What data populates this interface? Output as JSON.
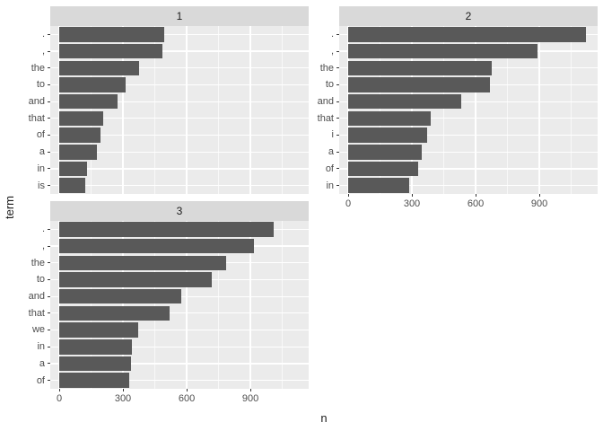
{
  "chart_data": {
    "type": "bar",
    "orientation": "horizontal",
    "title": "",
    "xlabel": "n",
    "ylabel": "term",
    "legend": "none",
    "grid": true,
    "panel_x_range": [
      -42,
      1174
    ],
    "x_ticks": [
      {
        "label": "0",
        "value": 0
      },
      {
        "label": "300",
        "value": 300
      },
      {
        "label": "600",
        "value": 600
      },
      {
        "label": "900",
        "value": 900
      }
    ],
    "x_minor_values": [
      150,
      450,
      750,
      1050
    ],
    "facets": [
      {
        "label": "1",
        "show_x_axis": false,
        "terms": [
          ".",
          ",",
          "the",
          "to",
          "and",
          "that",
          "of",
          "a",
          "in",
          "is"
        ],
        "values": [
          495,
          485,
          377,
          313,
          274,
          206,
          196,
          179,
          133,
          123
        ]
      },
      {
        "label": "2",
        "show_x_axis": true,
        "terms": [
          ".",
          ",",
          "the",
          "to",
          "and",
          "that",
          "i",
          "a",
          "of",
          "in"
        ],
        "values": [
          1120,
          890,
          675,
          668,
          532,
          390,
          370,
          347,
          330,
          287
        ]
      },
      {
        "label": "3",
        "show_x_axis": true,
        "terms": [
          ".",
          ",",
          "the",
          "to",
          "and",
          "that",
          "we",
          "in",
          "a",
          "of"
        ],
        "values": [
          1010,
          915,
          785,
          720,
          575,
          520,
          372,
          343,
          338,
          328
        ]
      }
    ],
    "colors": {
      "bar": "#595959",
      "panel_bg": "#ebebeb",
      "strip_bg": "#d9d9d9",
      "grid": "#ffffff",
      "axis_text": "#4d4d4d",
      "strip_text": "#1a1a1a",
      "tick": "#333333",
      "background": "#ffffff"
    }
  }
}
